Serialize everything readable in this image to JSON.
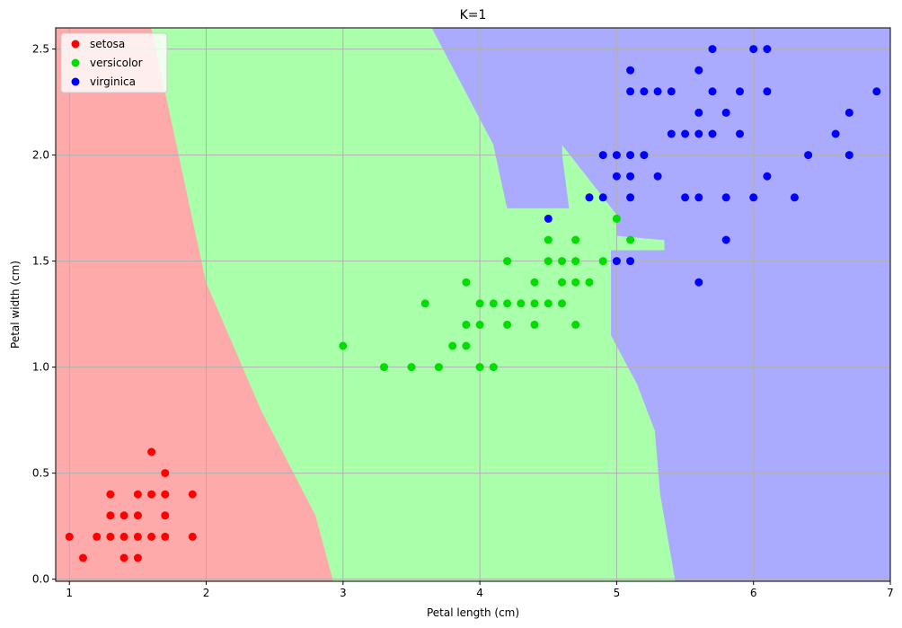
{
  "chart_data": {
    "type": "scatter",
    "title": "K=1",
    "xlabel": "Petal length (cm)",
    "ylabel": "Petal width (cm)",
    "xlim": [
      0.9,
      7.0
    ],
    "ylim": [
      -0.01,
      2.6
    ],
    "xticks": [
      "1",
      "2",
      "3",
      "4",
      "5",
      "6",
      "7"
    ],
    "yticks": [
      "0.0",
      "0.5",
      "1.0",
      "1.5",
      "2.0",
      "2.5"
    ],
    "grid": true,
    "legend_position": "top-left",
    "regions": [
      {
        "class": "setosa",
        "color": "#ffaaaa",
        "polygon": [
          [
            0.9,
            -0.01
          ],
          [
            0.9,
            2.6
          ],
          [
            1.6,
            2.6
          ],
          [
            1.8,
            2.0
          ],
          [
            2.0,
            1.4
          ],
          [
            2.2,
            1.1
          ],
          [
            2.4,
            0.8
          ],
          [
            2.6,
            0.55
          ],
          [
            2.8,
            0.3
          ],
          [
            2.93,
            -0.01
          ]
        ]
      },
      {
        "class": "versicolor",
        "color": "#aaffaa",
        "polygon": [
          [
            2.93,
            -0.01
          ],
          [
            2.8,
            0.3
          ],
          [
            2.6,
            0.55
          ],
          [
            2.4,
            0.8
          ],
          [
            2.2,
            1.1
          ],
          [
            2.0,
            1.4
          ],
          [
            1.8,
            2.0
          ],
          [
            1.6,
            2.6
          ],
          [
            3.65,
            2.6
          ],
          [
            4.1,
            2.05
          ],
          [
            4.2,
            1.75
          ],
          [
            4.65,
            1.75
          ],
          [
            4.6,
            2.0
          ],
          [
            4.6,
            2.05
          ],
          [
            5.0,
            1.72
          ],
          [
            5.0,
            1.62
          ],
          [
            5.35,
            1.6
          ],
          [
            5.35,
            1.55
          ],
          [
            4.96,
            1.55
          ],
          [
            4.96,
            1.15
          ],
          [
            5.15,
            0.92
          ],
          [
            5.28,
            0.7
          ],
          [
            5.32,
            0.4
          ],
          [
            5.43,
            -0.01
          ]
        ]
      },
      {
        "class": "virginica",
        "color": "#aaaaff",
        "polygon": [
          [
            3.65,
            2.6
          ],
          [
            7.0,
            2.6
          ],
          [
            7.0,
            -0.01
          ],
          [
            5.43,
            -0.01
          ],
          [
            5.32,
            0.4
          ],
          [
            5.28,
            0.7
          ],
          [
            5.15,
            0.92
          ],
          [
            4.96,
            1.15
          ],
          [
            4.96,
            1.55
          ],
          [
            5.35,
            1.55
          ],
          [
            5.35,
            1.6
          ],
          [
            5.0,
            1.62
          ],
          [
            5.0,
            1.72
          ],
          [
            4.6,
            2.05
          ],
          [
            4.6,
            2.0
          ],
          [
            4.65,
            1.75
          ],
          [
            4.2,
            1.75
          ],
          [
            4.1,
            2.05
          ]
        ]
      }
    ],
    "series": [
      {
        "name": "setosa",
        "color": "#ff0000",
        "points": [
          [
            1.0,
            0.2
          ],
          [
            1.1,
            0.1
          ],
          [
            1.2,
            0.2
          ],
          [
            1.3,
            0.2
          ],
          [
            1.3,
            0.3
          ],
          [
            1.3,
            0.4
          ],
          [
            1.4,
            0.1
          ],
          [
            1.4,
            0.2
          ],
          [
            1.4,
            0.3
          ],
          [
            1.5,
            0.1
          ],
          [
            1.5,
            0.2
          ],
          [
            1.5,
            0.3
          ],
          [
            1.5,
            0.4
          ],
          [
            1.6,
            0.2
          ],
          [
            1.6,
            0.4
          ],
          [
            1.6,
            0.6
          ],
          [
            1.7,
            0.2
          ],
          [
            1.7,
            0.3
          ],
          [
            1.7,
            0.4
          ],
          [
            1.7,
            0.5
          ],
          [
            1.9,
            0.2
          ],
          [
            1.9,
            0.4
          ]
        ]
      },
      {
        "name": "versicolor",
        "color": "#00dd00",
        "points": [
          [
            3.0,
            1.1
          ],
          [
            3.3,
            1.0
          ],
          [
            3.5,
            1.0
          ],
          [
            3.6,
            1.3
          ],
          [
            3.7,
            1.0
          ],
          [
            3.8,
            1.1
          ],
          [
            3.9,
            1.1
          ],
          [
            3.9,
            1.2
          ],
          [
            3.9,
            1.4
          ],
          [
            4.0,
            1.0
          ],
          [
            4.0,
            1.2
          ],
          [
            4.0,
            1.3
          ],
          [
            4.1,
            1.0
          ],
          [
            4.1,
            1.3
          ],
          [
            4.2,
            1.2
          ],
          [
            4.2,
            1.3
          ],
          [
            4.2,
            1.5
          ],
          [
            4.3,
            1.3
          ],
          [
            4.4,
            1.2
          ],
          [
            4.4,
            1.3
          ],
          [
            4.4,
            1.4
          ],
          [
            4.5,
            1.3
          ],
          [
            4.5,
            1.5
          ],
          [
            4.5,
            1.6
          ],
          [
            4.6,
            1.3
          ],
          [
            4.6,
            1.4
          ],
          [
            4.6,
            1.5
          ],
          [
            4.7,
            1.2
          ],
          [
            4.7,
            1.4
          ],
          [
            4.7,
            1.5
          ],
          [
            4.7,
            1.6
          ],
          [
            4.8,
            1.4
          ],
          [
            4.8,
            1.8
          ],
          [
            4.9,
            1.5
          ],
          [
            5.0,
            1.7
          ],
          [
            5.1,
            1.6
          ]
        ]
      },
      {
        "name": "virginica",
        "color": "#0000ff",
        "points": [
          [
            4.5,
            1.7
          ],
          [
            4.8,
            1.8
          ],
          [
            4.9,
            1.8
          ],
          [
            4.9,
            2.0
          ],
          [
            5.0,
            1.5
          ],
          [
            5.0,
            1.9
          ],
          [
            5.0,
            2.0
          ],
          [
            5.1,
            1.5
          ],
          [
            5.1,
            1.8
          ],
          [
            5.1,
            1.9
          ],
          [
            5.1,
            2.0
          ],
          [
            5.1,
            2.3
          ],
          [
            5.1,
            2.4
          ],
          [
            5.2,
            2.0
          ],
          [
            5.2,
            2.3
          ],
          [
            5.3,
            1.9
          ],
          [
            5.3,
            2.3
          ],
          [
            5.4,
            2.1
          ],
          [
            5.4,
            2.3
          ],
          [
            5.5,
            1.8
          ],
          [
            5.5,
            2.1
          ],
          [
            5.6,
            1.4
          ],
          [
            5.6,
            1.8
          ],
          [
            5.6,
            2.1
          ],
          [
            5.6,
            2.2
          ],
          [
            5.6,
            2.4
          ],
          [
            5.7,
            2.1
          ],
          [
            5.7,
            2.3
          ],
          [
            5.7,
            2.5
          ],
          [
            5.8,
            1.6
          ],
          [
            5.8,
            1.8
          ],
          [
            5.8,
            2.2
          ],
          [
            5.9,
            2.1
          ],
          [
            5.9,
            2.3
          ],
          [
            6.0,
            1.8
          ],
          [
            6.0,
            2.5
          ],
          [
            6.1,
            1.9
          ],
          [
            6.1,
            2.3
          ],
          [
            6.1,
            2.5
          ],
          [
            6.3,
            1.8
          ],
          [
            6.4,
            2.0
          ],
          [
            6.6,
            2.1
          ],
          [
            6.7,
            2.0
          ],
          [
            6.7,
            2.2
          ],
          [
            6.9,
            2.3
          ]
        ]
      }
    ]
  }
}
